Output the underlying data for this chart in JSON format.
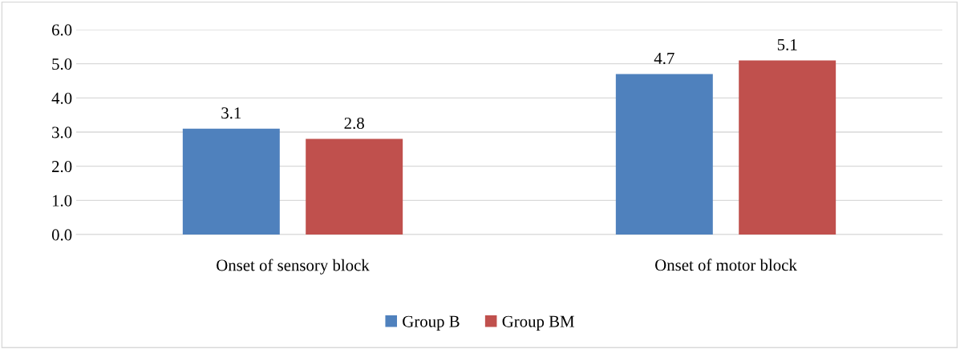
{
  "chart_data": {
    "type": "bar",
    "categories": [
      "Onset of sensory block",
      "Onset of motor block"
    ],
    "series": [
      {
        "name": "Group B",
        "color": "#4f81bd",
        "values": [
          3.1,
          4.7
        ]
      },
      {
        "name": "Group BM",
        "color": "#c0504d",
        "values": [
          2.8,
          5.1
        ]
      }
    ],
    "ylim": [
      0,
      6
    ],
    "yticks": [
      {
        "value": 0,
        "label": "0.0"
      },
      {
        "value": 1,
        "label": "1.0"
      },
      {
        "value": 2,
        "label": "2.0"
      },
      {
        "value": 3,
        "label": "3.0"
      },
      {
        "value": 4,
        "label": "4.0"
      },
      {
        "value": 5,
        "label": "5.0"
      },
      {
        "value": 6,
        "label": "6.0"
      }
    ],
    "grid": "y",
    "legend": "bottom",
    "data_labels": true
  }
}
